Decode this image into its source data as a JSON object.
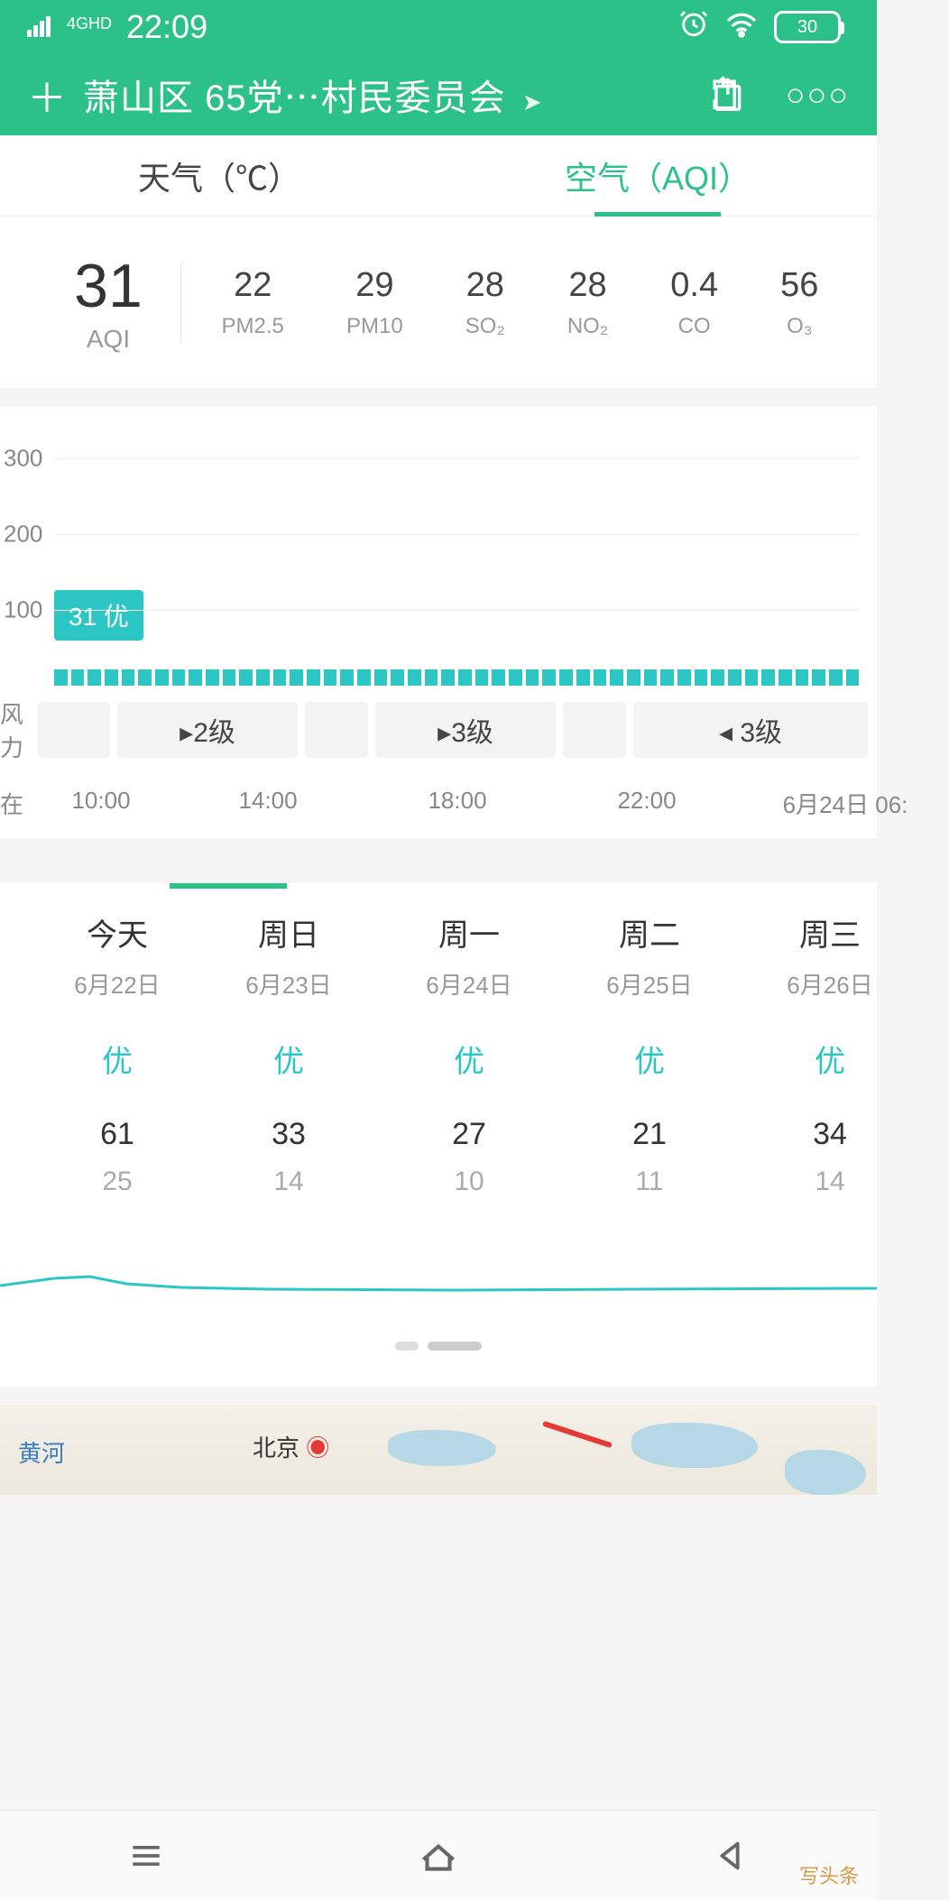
{
  "status": {
    "network": "4GHD",
    "time": "22:09",
    "battery": "30"
  },
  "header": {
    "location": "萧山区 65党⋯村民委员会"
  },
  "tabs": {
    "weather": "天气（℃）",
    "air": "空气（AQI）"
  },
  "aqi": {
    "value": "31",
    "label": "AQI",
    "pollutants": [
      {
        "v": "22",
        "l": "PM2.5"
      },
      {
        "v": "29",
        "l": "PM10"
      },
      {
        "v": "28",
        "l": "SO₂"
      },
      {
        "v": "28",
        "l": "NO₂"
      },
      {
        "v": "0.4",
        "l": "CO"
      },
      {
        "v": "56",
        "l": "O₃"
      }
    ]
  },
  "chart": {
    "yticks": [
      {
        "v": "300",
        "pct": 10
      },
      {
        "v": "200",
        "pct": 40
      },
      {
        "v": "100",
        "pct": 70
      }
    ],
    "badge": "31 优",
    "wind_label": "风力",
    "winds": [
      "",
      "▸2级",
      "",
      "▸3级",
      "",
      "◂ 3级"
    ],
    "wind_widths": [
      80,
      200,
      70,
      200,
      70,
      260
    ],
    "time_first": "在",
    "times": [
      "10:00",
      "14:00",
      "18:00",
      "22:00",
      "6月24日 06:"
    ],
    "time_widths": [
      160,
      210,
      210,
      210,
      230
    ]
  },
  "daily": [
    {
      "name": "今天",
      "date": "6月22日",
      "qual": "优",
      "hi": "61",
      "lo": "25"
    },
    {
      "name": "周日",
      "date": "6月23日",
      "qual": "优",
      "hi": "33",
      "lo": "14"
    },
    {
      "name": "周一",
      "date": "6月24日",
      "qual": "优",
      "hi": "27",
      "lo": "10"
    },
    {
      "name": "周二",
      "date": "6月25日",
      "qual": "优",
      "hi": "21",
      "lo": "11"
    },
    {
      "name": "周三",
      "date": "6月26日",
      "qual": "优",
      "hi": "34",
      "lo": "14"
    }
  ],
  "map": {
    "river": "黄河",
    "city": "北京"
  },
  "watermark": "写头条",
  "colors": {
    "primary": "#2dc18a",
    "teal": "#2cc7c5"
  }
}
